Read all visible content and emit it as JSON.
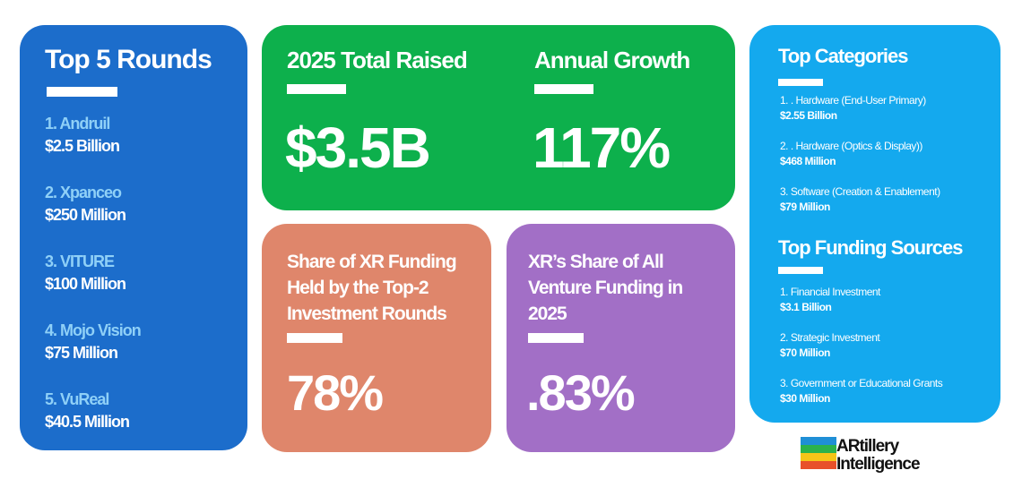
{
  "top_rounds": {
    "title": "Top 5 Rounds",
    "items": [
      {
        "name": "1. Andruil",
        "amount": "$2.5 Billion"
      },
      {
        "name": "2. Xpanceo",
        "amount": "$250 Million"
      },
      {
        "name": "3. VITURE",
        "amount": "$100 Million"
      },
      {
        "name": "4. Mojo Vision",
        "amount": "$75 Million"
      },
      {
        "name": "5. VuReal",
        "amount": "$40.5 Million"
      }
    ]
  },
  "total_raised": {
    "title": "2025 Total Raised",
    "value": "$3.5B"
  },
  "annual_growth": {
    "title": "Annual Growth",
    "value": "117%"
  },
  "top2_share": {
    "title": "Share of XR Funding Held by the Top-2 Investment Rounds",
    "value": "78%"
  },
  "xr_share": {
    "title": "XR’s Share of All Venture Funding in 2025",
    "value": ".83%"
  },
  "top_categories": {
    "title": "Top Categories",
    "items": [
      {
        "name": "1. . Hardware (End-User Primary)",
        "amount": "$2.55 Billion"
      },
      {
        "name": "2. . Hardware (Optics & Display))",
        "amount": "$468 Million"
      },
      {
        "name": "3. Software (Creation & Enablement)",
        "amount": "$79 Million"
      }
    ]
  },
  "top_sources": {
    "title": "Top Funding Sources",
    "items": [
      {
        "name": "1. Financial Investment",
        "amount": "$3.1 Billion"
      },
      {
        "name": "2. Strategic Investment",
        "amount": "$70 Million"
      },
      {
        "name": "3. Government or Educational Grants",
        "amount": "$30 Million"
      }
    ]
  },
  "logo": {
    "line1": "ARtillery",
    "line2": "Intelligence"
  }
}
